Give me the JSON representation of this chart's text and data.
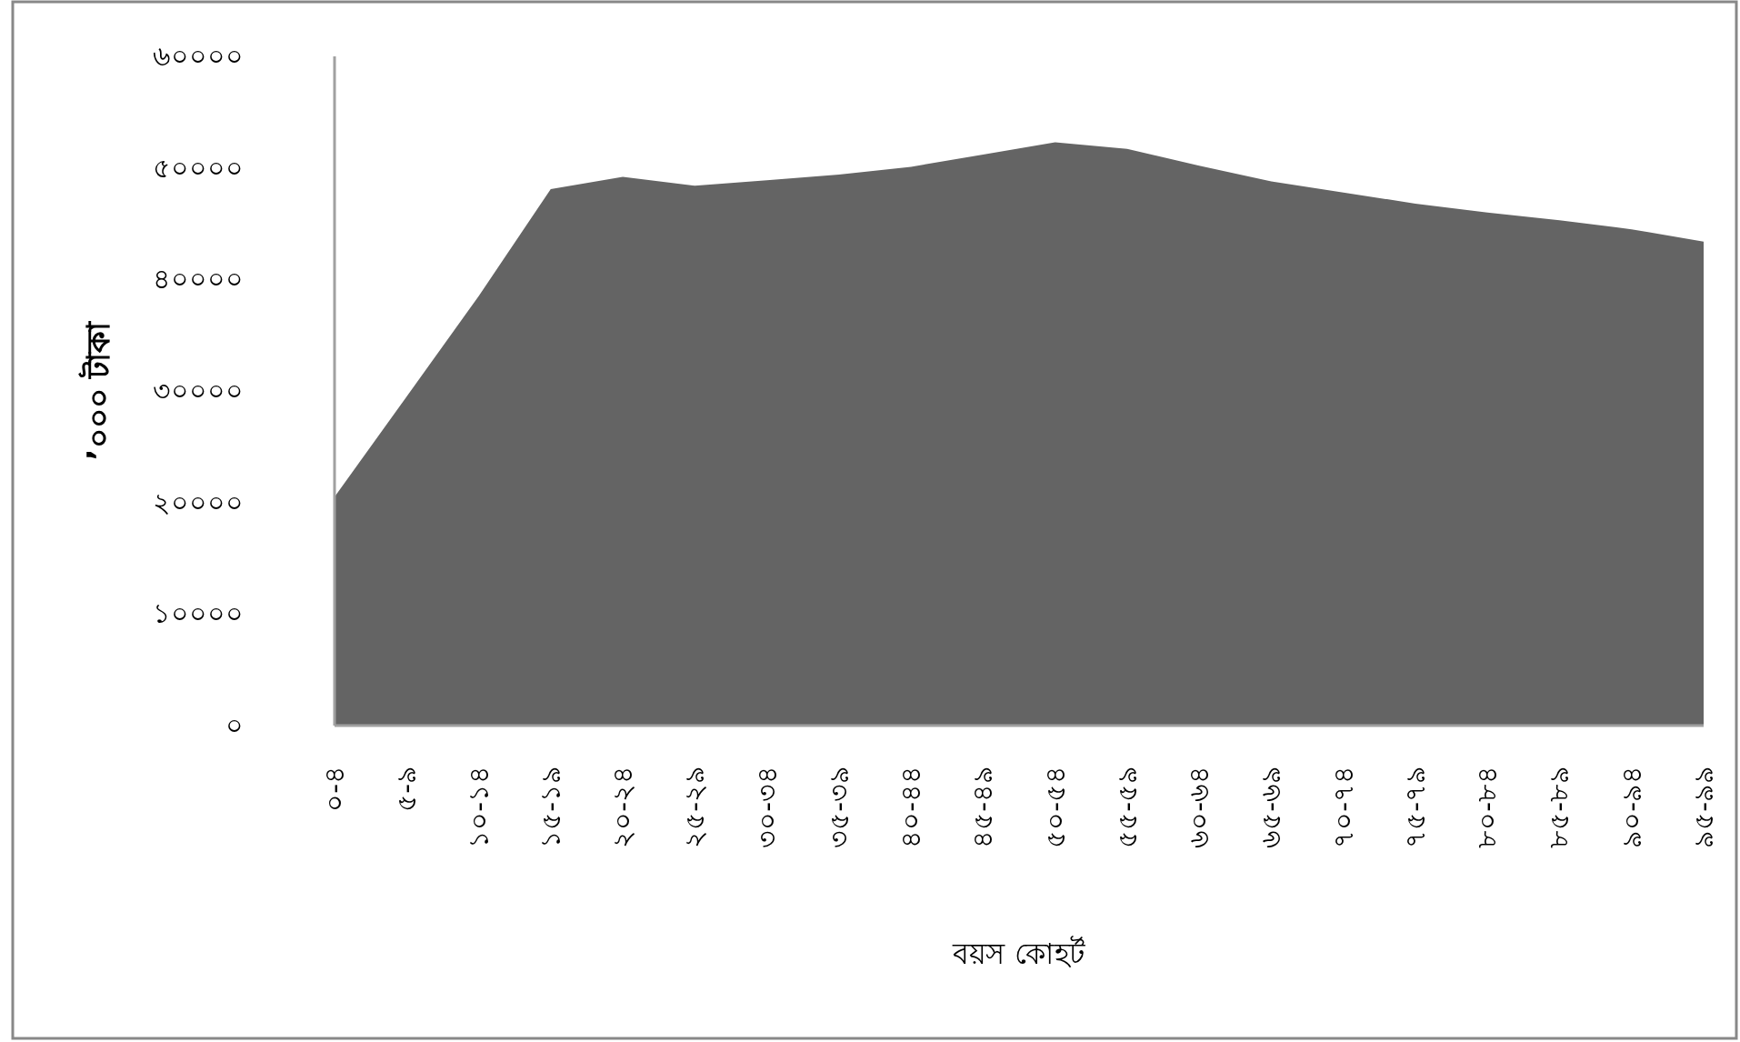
{
  "chart_data": {
    "type": "area",
    "xlabel": "বয়স কোহর্ট",
    "ylabel": "’০০০ টাকা",
    "categories": [
      "০-৪",
      "৫-৯",
      "১০-১৪",
      "১৫-১৯",
      "২০-২৪",
      "২৫-২৯",
      "৩০-৩৪",
      "৩৫-৩৯",
      "৪০-৪৪",
      "৪৫-৪৯",
      "৫০-৫৪",
      "৫৫-৫৯",
      "৬০-৬৪",
      "৬৫-৬৯",
      "৭০-৭৪",
      "৭৫-৭৯",
      "৮০-৮৪",
      "৮৫-৮৯",
      "৯০-৯৪",
      "৯৫-৯৯"
    ],
    "values": [
      20500,
      29500,
      38500,
      48100,
      49200,
      48400,
      48900,
      49400,
      50100,
      51200,
      52300,
      51700,
      50200,
      48800,
      47800,
      46800,
      46000,
      45300,
      44500,
      43400
    ],
    "color": "#646464",
    "ylim": [
      0,
      60000
    ],
    "yticks": [
      {
        "value": 0,
        "label": "০"
      },
      {
        "value": 10000,
        "label": "১০০০০"
      },
      {
        "value": 20000,
        "label": "২০০০০"
      },
      {
        "value": 30000,
        "label": "৩০০০০"
      },
      {
        "value": 40000,
        "label": "৪০০০০"
      },
      {
        "value": 50000,
        "label": "৫০০০০"
      },
      {
        "value": 60000,
        "label": "৬০০০০"
      }
    ]
  }
}
